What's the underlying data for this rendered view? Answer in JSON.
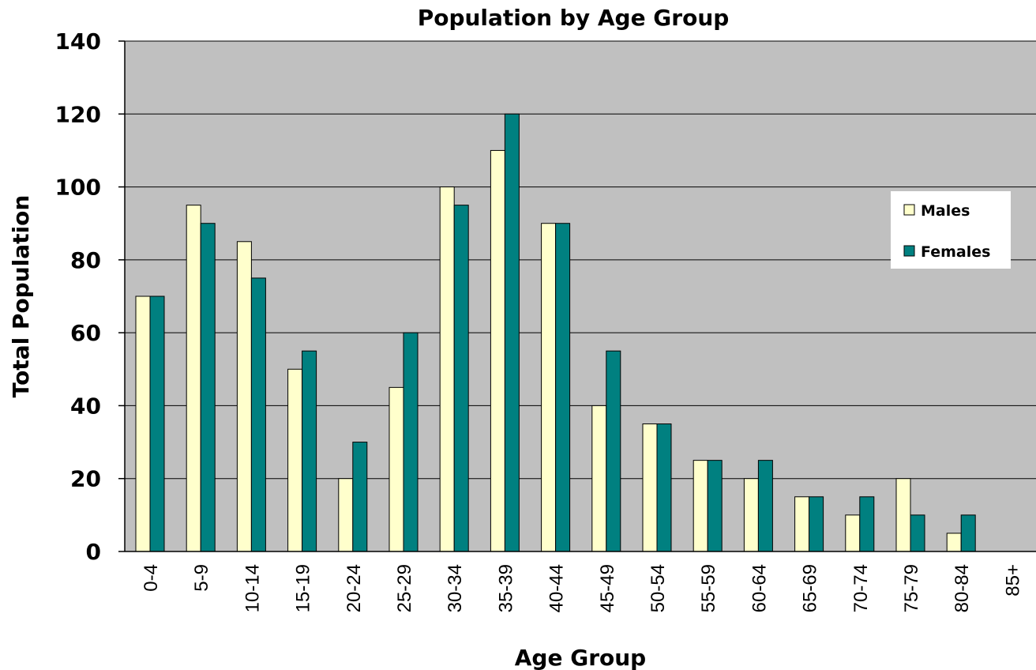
{
  "colors": {
    "plot_background": "#c0c0c0",
    "males": "#ffffcc",
    "females": "#008080",
    "gridline": "#000000",
    "bar_outline": "#000000",
    "legend_background": "#ffffff"
  },
  "chart_data": {
    "type": "bar",
    "title": "Population by Age Group",
    "xlabel": "Age Group",
    "ylabel": "Total Population",
    "categories": [
      "0-4",
      "5-9",
      "10-14",
      "15-19",
      "20-24",
      "25-29",
      "30-34",
      "35-39",
      "40-44",
      "45-49",
      "50-54",
      "55-59",
      "60-64",
      "65-69",
      "70-74",
      "75-79",
      "80-84",
      "85+"
    ],
    "series": [
      {
        "name": "Males",
        "values": [
          70,
          95,
          85,
          50,
          20,
          45,
          100,
          110,
          90,
          40,
          35,
          25,
          20,
          15,
          10,
          20,
          5,
          null
        ]
      },
      {
        "name": "Females",
        "values": [
          70,
          90,
          75,
          55,
          30,
          60,
          95,
          120,
          90,
          55,
          35,
          25,
          25,
          15,
          15,
          10,
          10,
          null
        ]
      }
    ],
    "ylim": [
      0,
      140
    ],
    "yticks": [
      "0",
      "20",
      "40",
      "60",
      "80",
      "100",
      "120",
      "140"
    ],
    "grid": true,
    "legend_position": "right"
  }
}
